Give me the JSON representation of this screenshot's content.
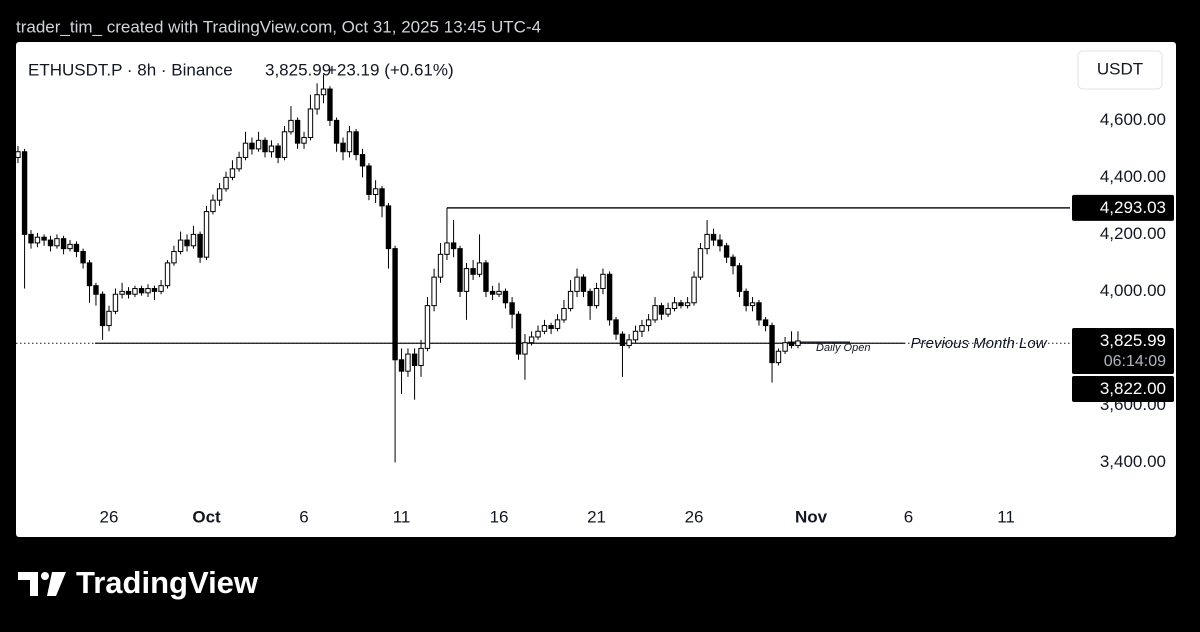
{
  "credit": "trader_tim_ created with TradingView.com, Oct 31, 2025 13:45 UTC-4",
  "footer": "TradingView",
  "chart_data": {
    "type": "candlestick",
    "symbol": "ETHUSDT.P · 8h · Binance",
    "last": "3,825.99",
    "change": "+23.19 (+0.61%)",
    "currency": "USDT",
    "up_color": "#ffffff",
    "down_color": "#000000",
    "wick_color": "#000000",
    "grid": false,
    "xlim": [
      21.23,
      75.28
    ],
    "xticks": [
      26,
      {
        "value": 31,
        "label": "Oct"
      },
      {
        "value": 36,
        "label": "6"
      },
      {
        "value": 41,
        "label": "11"
      },
      {
        "value": 46,
        "label": "16"
      },
      {
        "value": 51,
        "label": "21"
      },
      {
        "value": 56,
        "label": "26"
      },
      {
        "value": 62,
        "label": "Nov"
      },
      {
        "value": 67,
        "label": "6"
      },
      {
        "value": 72,
        "label": "11"
      }
    ],
    "ylim": [
      3268,
      4868
    ],
    "yticks": [
      {
        "value": 3400,
        "label": "3,400.00"
      },
      {
        "value": 3600,
        "label": "3,600.00"
      },
      {
        "value": 4000,
        "label": "4,000.00"
      },
      {
        "value": 4200,
        "label": "4,200.00"
      },
      {
        "value": 4400,
        "label": "4,400.00"
      },
      {
        "value": 4600,
        "label": "4,600.00"
      }
    ],
    "x": [
      21.33,
      21.67,
      22,
      22.33,
      22.67,
      23,
      23.33,
      23.67,
      24,
      24.33,
      24.67,
      25,
      25.33,
      25.67,
      26,
      26.33,
      26.67,
      27,
      27.33,
      27.67,
      28,
      28.33,
      28.67,
      29,
      29.33,
      29.67,
      30,
      30.33,
      30.67,
      31,
      31.33,
      31.67,
      32,
      32.33,
      32.67,
      33,
      33.33,
      33.67,
      34,
      34.33,
      34.67,
      35,
      35.33,
      35.67,
      36,
      36.33,
      36.67,
      37,
      37.33,
      37.67,
      38,
      38.33,
      38.67,
      39,
      39.33,
      39.67,
      40,
      40.33,
      40.67,
      41,
      41.33,
      41.67,
      42,
      42.33,
      42.67,
      43,
      43.33,
      43.67,
      44,
      44.33,
      44.67,
      45,
      45.33,
      45.67,
      46,
      46.33,
      46.67,
      47,
      47.33,
      47.67,
      48,
      48.33,
      48.67,
      49,
      49.33,
      49.67,
      50,
      50.33,
      50.67,
      51,
      51.33,
      51.67,
      52,
      52.33,
      52.67,
      53,
      53.33,
      53.67,
      54,
      54.33,
      54.67,
      55,
      55.33,
      55.67,
      56,
      56.33,
      56.67,
      57,
      57.33,
      57.67,
      58,
      58.33,
      58.67,
      59,
      59.33,
      59.67,
      60,
      60.33,
      60.67,
      61,
      61.33
    ],
    "open": [
      4470,
      4490,
      4200,
      4170,
      4190,
      4180,
      4160,
      4185,
      4150,
      4165,
      4140,
      4100,
      4020,
      3990,
      3880,
      3930,
      3990,
      4000,
      3990,
      4010,
      3995,
      4010,
      4000,
      4020,
      4100,
      4140,
      4180,
      4160,
      4200,
      4120,
      4280,
      4320,
      4360,
      4400,
      4430,
      4470,
      4520,
      4500,
      4530,
      4490,
      4510,
      4470,
      4560,
      4600,
      4520,
      4540,
      4640,
      4690,
      4710,
      4600,
      4520,
      4490,
      4560,
      4480,
      4440,
      4340,
      4360,
      4300,
      4150,
      3760,
      3720,
      3780,
      3740,
      3800,
      3950,
      4050,
      4130,
      4170,
      4150,
      4000,
      4080,
      4060,
      4100,
      4000,
      3990,
      4000,
      3960,
      3920,
      3780,
      3820,
      3840,
      3860,
      3880,
      3870,
      3900,
      3940,
      4000,
      4050,
      4000,
      3950,
      4010,
      4060,
      3900,
      3850,
      3810,
      3830,
      3860,
      3880,
      3900,
      3950,
      3920,
      3940,
      3960,
      3950,
      3960,
      4050,
      4150,
      4200,
      4180,
      4160,
      4120,
      4090,
      4000,
      3950,
      3960,
      3900,
      3880,
      3750,
      3790,
      3820,
      3810
    ],
    "high": [
      4510,
      4500,
      4215,
      4205,
      4200,
      4195,
      4200,
      4195,
      4180,
      4175,
      4150,
      4110,
      4030,
      4000,
      3950,
      4010,
      4030,
      4015,
      4020,
      4020,
      4025,
      4020,
      4040,
      4110,
      4160,
      4210,
      4200,
      4230,
      4210,
      4300,
      4340,
      4380,
      4420,
      4460,
      4490,
      4560,
      4540,
      4560,
      4540,
      4530,
      4520,
      4580,
      4650,
      4610,
      4560,
      4690,
      4730,
      4760,
      4720,
      4610,
      4540,
      4580,
      4570,
      4500,
      4450,
      4390,
      4370,
      4310,
      4160,
      3800,
      3800,
      3800,
      3830,
      3980,
      4080,
      4170,
      4293.03,
      4250,
      4160,
      4100,
      4110,
      4200,
      4110,
      4020,
      4030,
      4010,
      3980,
      3930,
      3850,
      3860,
      3880,
      3900,
      3890,
      3920,
      3970,
      4040,
      4080,
      4060,
      4010,
      4030,
      4080,
      4070,
      3910,
      3860,
      3850,
      3880,
      3900,
      3920,
      3980,
      3960,
      3960,
      3980,
      3970,
      3980,
      4070,
      4170,
      4250,
      4220,
      4200,
      4170,
      4130,
      4100,
      4010,
      3980,
      3970,
      3910,
      3890,
      3800,
      3840,
      3860,
      3860
    ],
    "low": [
      4450,
      4010,
      4150,
      4155,
      4160,
      4140,
      4150,
      4130,
      4140,
      4120,
      4080,
      3960,
      3950,
      3830,
      3860,
      3920,
      3975,
      3975,
      3980,
      3985,
      3980,
      3970,
      3990,
      4010,
      4090,
      4130,
      4140,
      4150,
      4100,
      4110,
      4270,
      4300,
      4350,
      4390,
      4420,
      4460,
      4480,
      4490,
      4470,
      4470,
      4450,
      4460,
      4550,
      4500,
      4500,
      4530,
      4620,
      4660,
      4580,
      4490,
      4460,
      4470,
      4460,
      4400,
      4320,
      4310,
      4260,
      4080,
      3400,
      3640,
      3700,
      3620,
      3700,
      3790,
      3930,
      4030,
      4110,
      4120,
      3980,
      3900,
      4040,
      4050,
      3980,
      3970,
      3980,
      3940,
      3870,
      3760,
      3690,
      3810,
      3830,
      3850,
      3850,
      3860,
      3890,
      3930,
      3980,
      3980,
      3900,
      3940,
      3990,
      3880,
      3830,
      3700,
      3800,
      3820,
      3840,
      3860,
      3890,
      3900,
      3910,
      3930,
      3940,
      3940,
      3950,
      4040,
      4130,
      4160,
      4140,
      4100,
      4060,
      3980,
      3930,
      3930,
      3880,
      3860,
      3680,
      3740,
      3780,
      3800,
      3800
    ],
    "close": [
      4490,
      4200,
      4170,
      4190,
      4180,
      4160,
      4185,
      4150,
      4165,
      4140,
      4100,
      4020,
      3990,
      3880,
      3930,
      3990,
      4000,
      3990,
      4010,
      3995,
      4010,
      4000,
      4020,
      4100,
      4140,
      4180,
      4160,
      4200,
      4120,
      4280,
      4320,
      4360,
      4400,
      4430,
      4470,
      4520,
      4500,
      4530,
      4490,
      4510,
      4470,
      4560,
      4600,
      4520,
      4540,
      4640,
      4690,
      4710,
      4600,
      4520,
      4490,
      4560,
      4480,
      4440,
      4340,
      4360,
      4300,
      4150,
      3760,
      3720,
      3780,
      3740,
      3800,
      3950,
      4050,
      4130,
      4170,
      4150,
      4000,
      4080,
      4060,
      4100,
      4000,
      3990,
      4000,
      3960,
      3920,
      3780,
      3820,
      3840,
      3860,
      3880,
      3870,
      3900,
      3940,
      4000,
      4050,
      4000,
      3950,
      4010,
      4060,
      3900,
      3850,
      3810,
      3830,
      3860,
      3880,
      3900,
      3950,
      3920,
      3940,
      3960,
      3950,
      3960,
      4050,
      4150,
      4200,
      4180,
      4160,
      4120,
      4090,
      4000,
      3950,
      3960,
      3900,
      3880,
      3750,
      3790,
      3820,
      3810,
      3825.99
    ],
    "level_line": {
      "value": 4293.03,
      "from": 43.33
    },
    "annotations": [
      {
        "label": "Previous Month Low",
        "value": 3818,
        "from": 25.28,
        "to": 66.8
      },
      {
        "label": "Daily Open",
        "value": 3822,
        "from": 60.8,
        "to": 64
      }
    ],
    "badges": [
      {
        "value": 4293.03,
        "label": "4,293.03"
      },
      {
        "value": 3825.99,
        "label": "3,825.99",
        "countdown": "06:14:09"
      },
      {
        "value": 3822.0,
        "label": "3,822.00"
      }
    ]
  }
}
